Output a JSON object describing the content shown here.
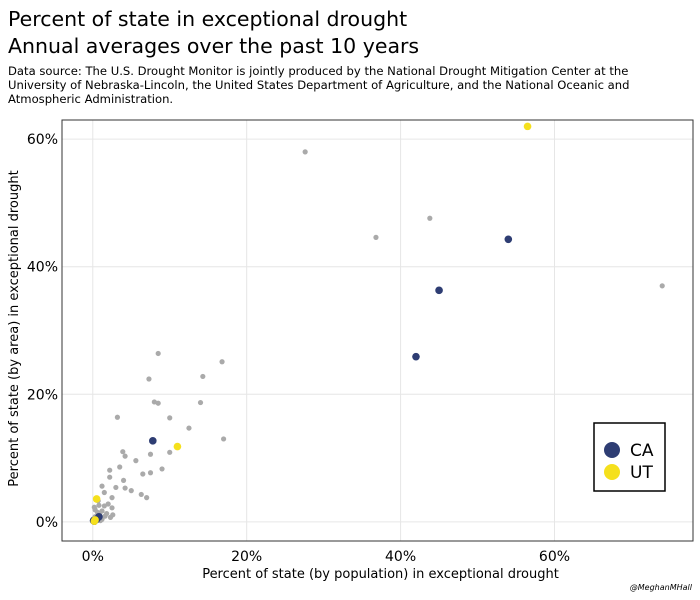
{
  "header": {
    "title_line1": "Percent of state in exceptional drought",
    "title_line2": "Annual averages over the past 10 years",
    "source": "Data source: The U.S. Drought Monitor is jointly produced by the National Drought Mitigation Center at the University of Nebraska-Lincoln, the United States Department of Agriculture, and the National Oceanic and Atmospheric Administration."
  },
  "credit": "@MeghanMHall",
  "colors": {
    "other": "#aaaaaa",
    "CA": "#2e3d73",
    "UT": "#f5e01d",
    "grid": "#e6e6e6"
  },
  "chart_data": {
    "type": "scatter",
    "xlabel": "Percent of state (by population) in exceptional drought",
    "ylabel": "Percent of state (by area) in exceptional drought",
    "xlim": [
      -4,
      78
    ],
    "ylim": [
      -3,
      63
    ],
    "x_ticks": [
      0,
      20,
      40,
      60
    ],
    "y_ticks": [
      0,
      20,
      40,
      60
    ],
    "tick_format": "{v}%",
    "grid": true,
    "legend": {
      "position": "bottom-right",
      "entries": [
        "CA",
        "UT"
      ]
    },
    "series": [
      {
        "name": "CA",
        "points": [
          [
            54,
            44.3
          ],
          [
            45,
            36.3
          ],
          [
            42,
            25.9
          ],
          [
            7.8,
            12.7
          ],
          [
            0.5,
            0.4
          ],
          [
            0.2,
            0.1
          ],
          [
            0.8,
            0.8
          ],
          [
            0.1,
            0.2
          ]
        ]
      },
      {
        "name": "UT",
        "points": [
          [
            56.5,
            62
          ],
          [
            11,
            11.8
          ],
          [
            0.5,
            3.6
          ],
          [
            0.3,
            0.3
          ],
          [
            0.2,
            0.1
          ]
        ]
      },
      {
        "name": "",
        "points": [
          [
            27.6,
            58
          ],
          [
            36.8,
            44.6
          ],
          [
            43.8,
            47.6
          ],
          [
            74,
            37
          ],
          [
            8.5,
            26.4
          ],
          [
            16.8,
            25.1
          ],
          [
            7.3,
            22.4
          ],
          [
            14.3,
            22.8
          ],
          [
            8,
            18.8
          ],
          [
            8.5,
            18.6
          ],
          [
            14,
            18.7
          ],
          [
            3.2,
            16.4
          ],
          [
            10,
            16.3
          ],
          [
            12.5,
            14.7
          ],
          [
            17,
            13
          ],
          [
            7.5,
            10.6
          ],
          [
            3.9,
            11
          ],
          [
            4.2,
            10.3
          ],
          [
            5.6,
            9.6
          ],
          [
            10,
            10.9
          ],
          [
            9,
            8.3
          ],
          [
            3.5,
            8.6
          ],
          [
            2.2,
            8.1
          ],
          [
            7.5,
            7.7
          ],
          [
            6.5,
            7.5
          ],
          [
            4,
            6.5
          ],
          [
            2.2,
            7
          ],
          [
            3,
            5.4
          ],
          [
            4.2,
            5.3
          ],
          [
            5,
            4.9
          ],
          [
            6.3,
            4.3
          ],
          [
            7,
            3.8
          ],
          [
            1.2,
            5.6
          ],
          [
            1.5,
            4.6
          ],
          [
            2.5,
            3.8
          ],
          [
            2,
            2.8
          ],
          [
            2.5,
            2.2
          ],
          [
            1.5,
            2.5
          ],
          [
            0.8,
            2.6
          ],
          [
            1.2,
            1.7
          ],
          [
            1.8,
            1.3
          ],
          [
            0.6,
            1.5
          ],
          [
            0.3,
            0.8
          ],
          [
            0.9,
            1.1
          ],
          [
            2.6,
            1.1
          ],
          [
            2.3,
            0.7
          ],
          [
            1.2,
            0.4
          ],
          [
            0.4,
            0.3
          ],
          [
            1.6,
            0.9
          ],
          [
            0.7,
            3.3
          ],
          [
            0.2,
            2.3
          ],
          [
            0.1,
            0.5
          ],
          [
            0.05,
            0.05
          ],
          [
            0.6,
            0.6
          ],
          [
            1,
            0.2
          ],
          [
            0.3,
            1.9
          ]
        ]
      }
    ]
  }
}
